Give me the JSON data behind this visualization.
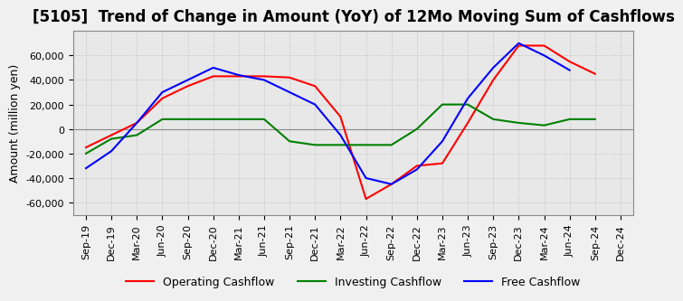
{
  "title": "[5105]  Trend of Change in Amount (YoY) of 12Mo Moving Sum of Cashflows",
  "ylabel": "Amount (million yen)",
  "ylim": [
    -70000,
    80000
  ],
  "yticks": [
    -60000,
    -40000,
    -20000,
    0,
    20000,
    40000,
    60000
  ],
  "x_labels": [
    "Sep-19",
    "Dec-19",
    "Mar-20",
    "Jun-20",
    "Sep-20",
    "Dec-20",
    "Mar-21",
    "Jun-21",
    "Sep-21",
    "Dec-21",
    "Mar-22",
    "Jun-22",
    "Sep-22",
    "Dec-22",
    "Mar-23",
    "Jun-23",
    "Sep-23",
    "Dec-23",
    "Mar-24",
    "Jun-24",
    "Sep-24",
    "Dec-24"
  ],
  "operating": [
    -15000,
    -5000,
    5000,
    25000,
    35000,
    43000,
    43000,
    43000,
    42000,
    35000,
    10000,
    -57000,
    -45000,
    -30000,
    -28000,
    5000,
    40000,
    68000,
    68000,
    55000,
    45000,
    null
  ],
  "investing": [
    -20000,
    -8000,
    -5000,
    8000,
    8000,
    8000,
    8000,
    8000,
    -10000,
    -13000,
    -13000,
    -13000,
    -13000,
    0,
    20000,
    20000,
    8000,
    5000,
    3000,
    8000,
    8000,
    null
  ],
  "free": [
    -32000,
    -18000,
    5000,
    30000,
    40000,
    50000,
    44000,
    40000,
    30000,
    20000,
    -5000,
    -40000,
    -45000,
    -33000,
    -10000,
    25000,
    50000,
    70000,
    60000,
    48000,
    null,
    null
  ],
  "line_colors": {
    "operating": "#ff0000",
    "investing": "#008000",
    "free": "#0000ff"
  },
  "legend_labels": [
    "Operating Cashflow",
    "Investing Cashflow",
    "Free Cashflow"
  ],
  "background_color": "#f0f0f0",
  "plot_bg_color": "#e8e8e8",
  "grid_color": "#aaaaaa",
  "title_fontsize": 12,
  "axis_fontsize": 9,
  "tick_fontsize": 8
}
